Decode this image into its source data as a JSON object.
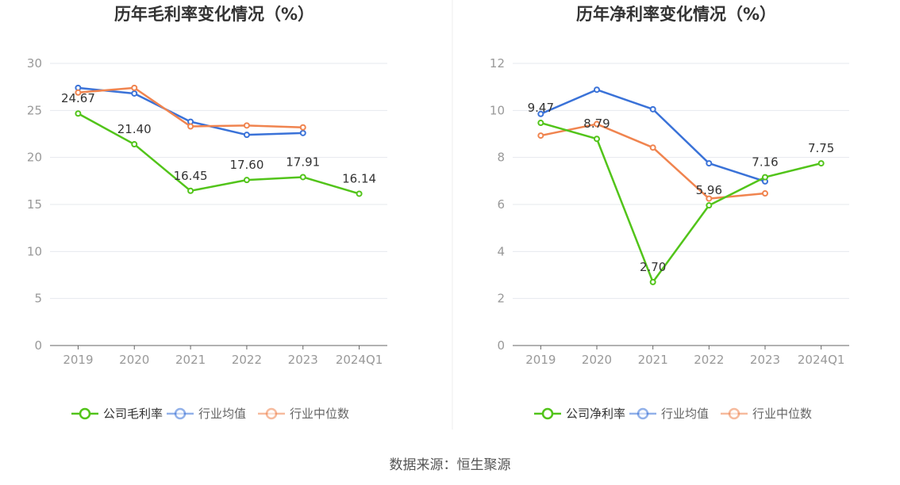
{
  "source": "数据来源：恒生聚源",
  "chart_data": [
    {
      "type": "line",
      "title": "历年毛利率变化情况（%）",
      "categories": [
        "2019",
        "2020",
        "2021",
        "2022",
        "2023",
        "2024Q1"
      ],
      "ylim": [
        0,
        30
      ],
      "yticks": [
        0,
        5,
        10,
        15,
        20,
        25,
        30
      ],
      "grid": true,
      "legend_position": "bottom",
      "series": [
        {
          "name": "公司毛利率",
          "color": "#52c41a",
          "values": [
            24.67,
            21.4,
            16.45,
            17.6,
            17.91,
            16.14
          ],
          "labels": [
            "24.67",
            "21.40",
            "16.45",
            "17.60",
            "17.91",
            "16.14"
          ]
        },
        {
          "name": "行业均值",
          "color": "#3a72d8",
          "values": [
            27.4,
            26.8,
            23.8,
            22.4,
            22.6,
            null
          ]
        },
        {
          "name": "行业中位数",
          "color": "#f0844f",
          "values": [
            26.9,
            27.4,
            23.3,
            23.4,
            23.2,
            null
          ]
        }
      ]
    },
    {
      "type": "line",
      "title": "历年净利率变化情况（%）",
      "categories": [
        "2019",
        "2020",
        "2021",
        "2022",
        "2023",
        "2024Q1"
      ],
      "ylim": [
        0,
        12
      ],
      "yticks": [
        0,
        2,
        4,
        6,
        8,
        10,
        12
      ],
      "grid": true,
      "legend_position": "bottom",
      "series": [
        {
          "name": "公司净利率",
          "color": "#52c41a",
          "values": [
            9.47,
            8.79,
            2.7,
            5.96,
            7.16,
            7.75
          ],
          "labels": [
            "9.47",
            "8.79",
            "2.70",
            "5.96",
            "7.16",
            "7.75"
          ]
        },
        {
          "name": "行业均值",
          "color": "#3a72d8",
          "values": [
            9.85,
            10.88,
            10.05,
            7.75,
            6.98,
            null
          ]
        },
        {
          "name": "行业中位数",
          "color": "#f0844f",
          "values": [
            8.93,
            9.42,
            8.42,
            6.25,
            6.47,
            null
          ]
        }
      ]
    }
  ]
}
